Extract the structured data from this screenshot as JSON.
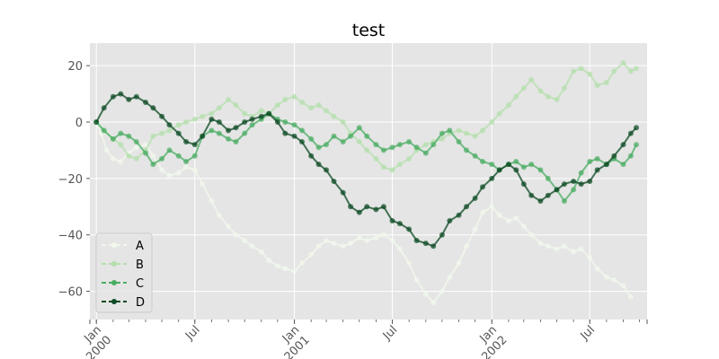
{
  "chart_data": {
    "type": "line",
    "title": "test",
    "xlabel": "",
    "ylabel": "",
    "grid": true,
    "legend_position": "lower-left",
    "x_range": [
      "1999-12-20",
      "2002-10-15"
    ],
    "ylim": [
      -70,
      28
    ],
    "y_ticks": [
      {
        "value": 20,
        "label": "20"
      },
      {
        "value": 0,
        "label": "0"
      },
      {
        "value": -20,
        "label": "−20"
      },
      {
        "value": -40,
        "label": "−40"
      },
      {
        "value": -60,
        "label": "−60"
      }
    ],
    "x_ticks": [
      {
        "date": "2000-01-01",
        "label": "Jan\n2000"
      },
      {
        "date": "2000-07-01",
        "label": "Jul"
      },
      {
        "date": "2001-01-01",
        "label": "Jan\n2001"
      },
      {
        "date": "2001-07-01",
        "label": "Jul"
      },
      {
        "date": "2002-01-01",
        "label": "Jan\n2002"
      },
      {
        "date": "2002-07-01",
        "label": "Jul"
      }
    ],
    "series": [
      {
        "name": "A",
        "color": "#f1f8ec",
        "points": [
          [
            "2000-01-01",
            0
          ],
          [
            "2000-01-10",
            -4
          ],
          [
            "2000-01-20",
            -10
          ],
          [
            "2000-02-01",
            -13
          ],
          [
            "2000-02-15",
            -14
          ],
          [
            "2000-03-01",
            -11
          ],
          [
            "2000-03-15",
            -9
          ],
          [
            "2000-04-01",
            -8
          ],
          [
            "2000-04-15",
            -12
          ],
          [
            "2000-05-01",
            -17
          ],
          [
            "2000-05-15",
            -19
          ],
          [
            "2000-06-01",
            -18
          ],
          [
            "2000-06-15",
            -16
          ],
          [
            "2000-07-01",
            -17
          ],
          [
            "2000-07-15",
            -22
          ],
          [
            "2000-08-01",
            -28
          ],
          [
            "2000-08-15",
            -33
          ],
          [
            "2000-09-01",
            -37
          ],
          [
            "2000-09-15",
            -40
          ],
          [
            "2000-10-01",
            -42
          ],
          [
            "2000-10-15",
            -44
          ],
          [
            "2000-11-01",
            -46
          ],
          [
            "2000-11-15",
            -49
          ],
          [
            "2000-12-01",
            -51
          ],
          [
            "2000-12-15",
            -52
          ],
          [
            "2001-01-01",
            -53
          ],
          [
            "2001-01-15",
            -50
          ],
          [
            "2001-02-01",
            -47
          ],
          [
            "2001-02-15",
            -44
          ],
          [
            "2001-03-01",
            -42
          ],
          [
            "2001-03-15",
            -43
          ],
          [
            "2001-04-01",
            -44
          ],
          [
            "2001-04-15",
            -43
          ],
          [
            "2001-05-01",
            -41
          ],
          [
            "2001-05-15",
            -42
          ],
          [
            "2001-06-01",
            -41
          ],
          [
            "2001-06-15",
            -40
          ],
          [
            "2001-07-01",
            -42
          ],
          [
            "2001-07-15",
            -45
          ],
          [
            "2001-08-01",
            -50
          ],
          [
            "2001-08-15",
            -56
          ],
          [
            "2001-09-01",
            -61
          ],
          [
            "2001-09-15",
            -64
          ],
          [
            "2001-10-01",
            -60
          ],
          [
            "2001-10-15",
            -55
          ],
          [
            "2001-11-01",
            -50
          ],
          [
            "2001-11-15",
            -44
          ],
          [
            "2001-12-01",
            -38
          ],
          [
            "2001-12-15",
            -32
          ],
          [
            "2002-01-01",
            -30
          ],
          [
            "2002-01-15",
            -33
          ],
          [
            "2002-02-01",
            -35
          ],
          [
            "2002-02-15",
            -34
          ],
          [
            "2002-03-01",
            -37
          ],
          [
            "2002-03-15",
            -40
          ],
          [
            "2002-04-01",
            -43
          ],
          [
            "2002-04-15",
            -44
          ],
          [
            "2002-05-01",
            -45
          ],
          [
            "2002-05-15",
            -44
          ],
          [
            "2002-06-01",
            -46
          ],
          [
            "2002-06-15",
            -45
          ],
          [
            "2002-07-01",
            -48
          ],
          [
            "2002-07-15",
            -52
          ],
          [
            "2002-08-01",
            -55
          ],
          [
            "2002-08-15",
            -56
          ],
          [
            "2002-09-01",
            -58
          ],
          [
            "2002-09-15",
            -62
          ]
        ]
      },
      {
        "name": "B",
        "color": "#b4dfac",
        "points": [
          [
            "2000-01-01",
            0
          ],
          [
            "2000-01-15",
            -3
          ],
          [
            "2000-02-01",
            -6
          ],
          [
            "2000-02-15",
            -8
          ],
          [
            "2000-03-01",
            -12
          ],
          [
            "2000-03-15",
            -13
          ],
          [
            "2000-04-01",
            -10
          ],
          [
            "2000-04-15",
            -5
          ],
          [
            "2000-05-01",
            -4
          ],
          [
            "2000-05-15",
            -3
          ],
          [
            "2000-06-01",
            -1
          ],
          [
            "2000-06-15",
            0
          ],
          [
            "2000-07-01",
            1
          ],
          [
            "2000-07-15",
            2
          ],
          [
            "2000-08-01",
            3
          ],
          [
            "2000-08-15",
            5
          ],
          [
            "2000-09-01",
            8
          ],
          [
            "2000-09-15",
            6
          ],
          [
            "2000-10-01",
            3
          ],
          [
            "2000-10-15",
            2
          ],
          [
            "2000-11-01",
            4
          ],
          [
            "2000-11-15",
            3
          ],
          [
            "2000-12-01",
            6
          ],
          [
            "2000-12-15",
            8
          ],
          [
            "2001-01-01",
            9
          ],
          [
            "2001-01-15",
            7
          ],
          [
            "2001-02-01",
            5
          ],
          [
            "2001-02-15",
            6
          ],
          [
            "2001-03-01",
            4
          ],
          [
            "2001-03-15",
            2
          ],
          [
            "2001-04-01",
            0
          ],
          [
            "2001-04-15",
            -4
          ],
          [
            "2001-05-01",
            -7
          ],
          [
            "2001-05-15",
            -10
          ],
          [
            "2001-06-01",
            -13
          ],
          [
            "2001-06-15",
            -16
          ],
          [
            "2001-07-01",
            -17
          ],
          [
            "2001-07-15",
            -15
          ],
          [
            "2001-08-01",
            -13
          ],
          [
            "2001-08-15",
            -10
          ],
          [
            "2001-09-01",
            -8
          ],
          [
            "2001-09-15",
            -7
          ],
          [
            "2001-10-01",
            -6
          ],
          [
            "2001-10-15",
            -4
          ],
          [
            "2001-11-01",
            -3
          ],
          [
            "2001-11-15",
            -4
          ],
          [
            "2001-12-01",
            -5
          ],
          [
            "2001-12-15",
            -3
          ],
          [
            "2002-01-01",
            0
          ],
          [
            "2002-01-15",
            3
          ],
          [
            "2002-02-01",
            6
          ],
          [
            "2002-02-15",
            9
          ],
          [
            "2002-03-01",
            12
          ],
          [
            "2002-03-15",
            15
          ],
          [
            "2002-04-01",
            11
          ],
          [
            "2002-04-15",
            9
          ],
          [
            "2002-05-01",
            8
          ],
          [
            "2002-05-15",
            12
          ],
          [
            "2002-06-01",
            18
          ],
          [
            "2002-06-15",
            19
          ],
          [
            "2002-07-01",
            17
          ],
          [
            "2002-07-15",
            13
          ],
          [
            "2002-08-01",
            14
          ],
          [
            "2002-08-15",
            18
          ],
          [
            "2002-09-01",
            21
          ],
          [
            "2002-09-15",
            18
          ],
          [
            "2002-09-25",
            19
          ]
        ]
      },
      {
        "name": "C",
        "color": "#4aad63",
        "points": [
          [
            "2000-01-01",
            0
          ],
          [
            "2000-01-15",
            -3
          ],
          [
            "2000-02-01",
            -6
          ],
          [
            "2000-02-15",
            -4
          ],
          [
            "2000-03-01",
            -5
          ],
          [
            "2000-03-15",
            -7
          ],
          [
            "2000-04-01",
            -11
          ],
          [
            "2000-04-15",
            -15
          ],
          [
            "2000-05-01",
            -13
          ],
          [
            "2000-05-15",
            -10
          ],
          [
            "2000-06-01",
            -12
          ],
          [
            "2000-06-15",
            -14
          ],
          [
            "2000-07-01",
            -12
          ],
          [
            "2000-07-15",
            -5
          ],
          [
            "2000-08-01",
            -3
          ],
          [
            "2000-08-15",
            -4
          ],
          [
            "2000-09-01",
            -6
          ],
          [
            "2000-09-15",
            -7
          ],
          [
            "2000-10-01",
            -4
          ],
          [
            "2000-10-15",
            -1
          ],
          [
            "2000-11-01",
            1
          ],
          [
            "2000-11-15",
            3
          ],
          [
            "2000-12-01",
            1
          ],
          [
            "2000-12-15",
            0
          ],
          [
            "2001-01-01",
            -1
          ],
          [
            "2001-01-15",
            -3
          ],
          [
            "2001-02-01",
            -6
          ],
          [
            "2001-02-15",
            -9
          ],
          [
            "2001-03-01",
            -8
          ],
          [
            "2001-03-15",
            -5
          ],
          [
            "2001-04-01",
            -7
          ],
          [
            "2001-04-15",
            -5
          ],
          [
            "2001-05-01",
            -2
          ],
          [
            "2001-05-15",
            -5
          ],
          [
            "2001-06-01",
            -8
          ],
          [
            "2001-06-15",
            -10
          ],
          [
            "2001-07-01",
            -9
          ],
          [
            "2001-07-15",
            -8
          ],
          [
            "2001-08-01",
            -7
          ],
          [
            "2001-08-15",
            -9
          ],
          [
            "2001-09-01",
            -11
          ],
          [
            "2001-09-15",
            -8
          ],
          [
            "2001-10-01",
            -4
          ],
          [
            "2001-10-15",
            -3
          ],
          [
            "2001-11-01",
            -7
          ],
          [
            "2001-11-15",
            -10
          ],
          [
            "2001-12-01",
            -12
          ],
          [
            "2001-12-15",
            -14
          ],
          [
            "2002-01-01",
            -15
          ],
          [
            "2002-01-15",
            -17
          ],
          [
            "2002-02-01",
            -15
          ],
          [
            "2002-02-15",
            -14
          ],
          [
            "2002-03-01",
            -16
          ],
          [
            "2002-03-15",
            -15
          ],
          [
            "2002-04-01",
            -17
          ],
          [
            "2002-04-15",
            -20
          ],
          [
            "2002-05-01",
            -24
          ],
          [
            "2002-05-15",
            -28
          ],
          [
            "2002-06-01",
            -24
          ],
          [
            "2002-06-15",
            -18
          ],
          [
            "2002-07-01",
            -14
          ],
          [
            "2002-07-15",
            -13
          ],
          [
            "2002-08-01",
            -15
          ],
          [
            "2002-08-15",
            -13
          ],
          [
            "2002-09-01",
            -15
          ],
          [
            "2002-09-15",
            -12
          ],
          [
            "2002-09-25",
            -8
          ]
        ]
      },
      {
        "name": "D",
        "color": "#0c4a23",
        "points": [
          [
            "2000-01-01",
            0
          ],
          [
            "2000-01-15",
            5
          ],
          [
            "2000-02-01",
            9
          ],
          [
            "2000-02-15",
            10
          ],
          [
            "2000-03-01",
            8
          ],
          [
            "2000-03-15",
            9
          ],
          [
            "2000-04-01",
            7
          ],
          [
            "2000-04-15",
            5
          ],
          [
            "2000-05-01",
            2
          ],
          [
            "2000-05-15",
            -1
          ],
          [
            "2000-06-01",
            -4
          ],
          [
            "2000-06-15",
            -7
          ],
          [
            "2000-07-01",
            -8
          ],
          [
            "2000-07-15",
            -5
          ],
          [
            "2000-08-01",
            1
          ],
          [
            "2000-08-15",
            0
          ],
          [
            "2000-09-01",
            -3
          ],
          [
            "2000-09-15",
            -2
          ],
          [
            "2000-10-01",
            0
          ],
          [
            "2000-10-15",
            1
          ],
          [
            "2000-11-01",
            2
          ],
          [
            "2000-11-15",
            3
          ],
          [
            "2000-12-01",
            0
          ],
          [
            "2000-12-15",
            -4
          ],
          [
            "2001-01-01",
            -5
          ],
          [
            "2001-01-15",
            -7
          ],
          [
            "2001-02-01",
            -12
          ],
          [
            "2001-02-15",
            -15
          ],
          [
            "2001-03-01",
            -17
          ],
          [
            "2001-03-15",
            -21
          ],
          [
            "2001-04-01",
            -25
          ],
          [
            "2001-04-15",
            -30
          ],
          [
            "2001-05-01",
            -32
          ],
          [
            "2001-05-15",
            -30
          ],
          [
            "2001-06-01",
            -31
          ],
          [
            "2001-06-15",
            -30
          ],
          [
            "2001-07-01",
            -35
          ],
          [
            "2001-07-15",
            -36
          ],
          [
            "2001-08-01",
            -38
          ],
          [
            "2001-08-15",
            -42
          ],
          [
            "2001-09-01",
            -43
          ],
          [
            "2001-09-15",
            -44
          ],
          [
            "2001-10-01",
            -40
          ],
          [
            "2001-10-15",
            -35
          ],
          [
            "2001-11-01",
            -33
          ],
          [
            "2001-11-15",
            -30
          ],
          [
            "2001-12-01",
            -27
          ],
          [
            "2001-12-15",
            -23
          ],
          [
            "2002-01-01",
            -20
          ],
          [
            "2002-01-15",
            -17
          ],
          [
            "2002-02-01",
            -15
          ],
          [
            "2002-02-15",
            -17
          ],
          [
            "2002-03-01",
            -22
          ],
          [
            "2002-03-15",
            -26
          ],
          [
            "2002-04-01",
            -28
          ],
          [
            "2002-04-15",
            -26
          ],
          [
            "2002-05-01",
            -24
          ],
          [
            "2002-05-15",
            -22
          ],
          [
            "2002-06-01",
            -21
          ],
          [
            "2002-06-15",
            -22
          ],
          [
            "2002-07-01",
            -21
          ],
          [
            "2002-07-15",
            -17
          ],
          [
            "2002-08-01",
            -15
          ],
          [
            "2002-08-15",
            -12
          ],
          [
            "2002-09-01",
            -8
          ],
          [
            "2002-09-15",
            -4
          ],
          [
            "2002-09-25",
            -2
          ]
        ]
      }
    ]
  }
}
